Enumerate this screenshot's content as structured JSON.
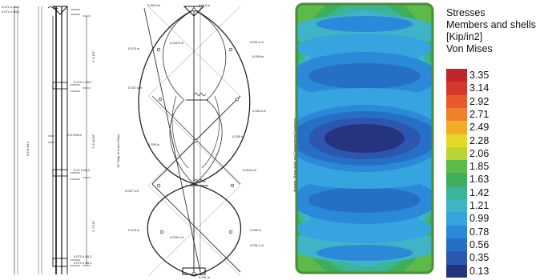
{
  "panel1": {
    "dims": [
      "2'-3 1/2\"",
      "7'-5 11/16\"",
      "2'-3 1/2\""
    ],
    "reactions": [
      "0.071 k WL2",
      "0.071 k WL2",
      "0.071 k WL2",
      "0.07 k WL2",
      "0.071 k WL2",
      "0.071 k WL2"
    ],
    "loads": [
      "0.8 ft WL2",
      "0.8 ft WL2"
    ]
  },
  "panel2": {
    "vertical_label": "12\" Strip of 6 mm Glass",
    "labels": [
      "0.053 k/s",
      "0.014 in",
      "0.020 k-ft",
      "0.031 k-ft",
      "0.095 in",
      "0.103 in",
      "0.037 k-ft",
      "0.034 k-ft",
      "0.035 in",
      "0.335 in",
      "0.004 k-ft",
      "0.037 k-ft",
      "0.103 in",
      "0.025 k-ft",
      "0.095 in",
      "0.031 k-ft",
      "0.051 in"
    ]
  },
  "panel3": {
    "side_label": "Moment, Shear, Axial, and Displacement Envelopes"
  },
  "legend": {
    "title_lines": [
      "Stresses",
      "Members and shells",
      "[Kip/in2]",
      "Von Mises"
    ],
    "entries": [
      {
        "value": "3.35",
        "color": "#c0262c"
      },
      {
        "value": "3.14",
        "color": "#d5372a"
      },
      {
        "value": "2.92",
        "color": "#e85a2c"
      },
      {
        "value": "2.71",
        "color": "#f07f2b"
      },
      {
        "value": "2.49",
        "color": "#f2ac2a"
      },
      {
        "value": "2.28",
        "color": "#e6d829"
      },
      {
        "value": "2.06",
        "color": "#b9d535"
      },
      {
        "value": "1.85",
        "color": "#5cb94a"
      },
      {
        "value": "1.63",
        "color": "#3fae5b"
      },
      {
        "value": "1.42",
        "color": "#3cb496"
      },
      {
        "value": "1.21",
        "color": "#3fb4c6"
      },
      {
        "value": "0.99",
        "color": "#35a4df"
      },
      {
        "value": "0.78",
        "color": "#2a8ad9"
      },
      {
        "value": "0.56",
        "color": "#2570c6"
      },
      {
        "value": "0.35",
        "color": "#2d56b1"
      },
      {
        "value": "0.13",
        "color": "#26347f"
      }
    ]
  }
}
